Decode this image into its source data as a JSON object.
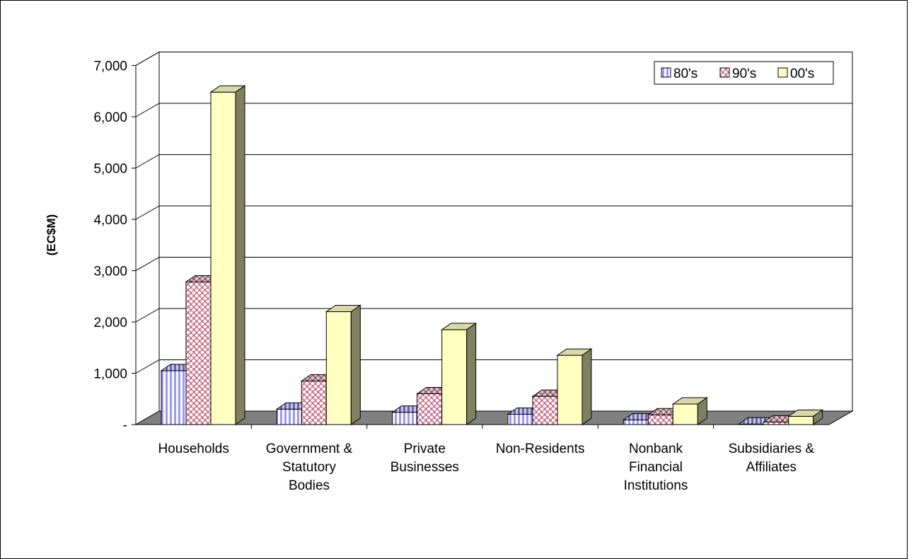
{
  "chart_data": {
    "type": "bar",
    "ylabel": "(EC$M)",
    "ylim": [
      0,
      7000
    ],
    "yticks": [
      "-",
      "1,000",
      "2,000",
      "3,000",
      "4,000",
      "5,000",
      "6,000",
      "7,000"
    ],
    "categories": [
      [
        "Households"
      ],
      [
        "Government &",
        "Statutory",
        "Bodies"
      ],
      [
        "Private",
        "Businesses"
      ],
      [
        "Non-Residents"
      ],
      [
        "Nonbank",
        "Financial",
        "Institutions"
      ],
      [
        "Subsidiaries &",
        "Affiliates"
      ]
    ],
    "series": [
      {
        "name": "80's",
        "values": [
          1050,
          300,
          240,
          200,
          90,
          10
        ]
      },
      {
        "name": "90's",
        "values": [
          2780,
          850,
          600,
          550,
          190,
          50
        ]
      },
      {
        "name": "00's",
        "values": [
          6480,
          2200,
          1850,
          1350,
          400,
          160
        ]
      }
    ],
    "legend_position": "top-right",
    "grid": true,
    "colors": {
      "s80": "#9999ff",
      "s90": "#993366",
      "s00": "#ffffc0",
      "s00_side": "#808060",
      "floor": "#808080"
    }
  }
}
